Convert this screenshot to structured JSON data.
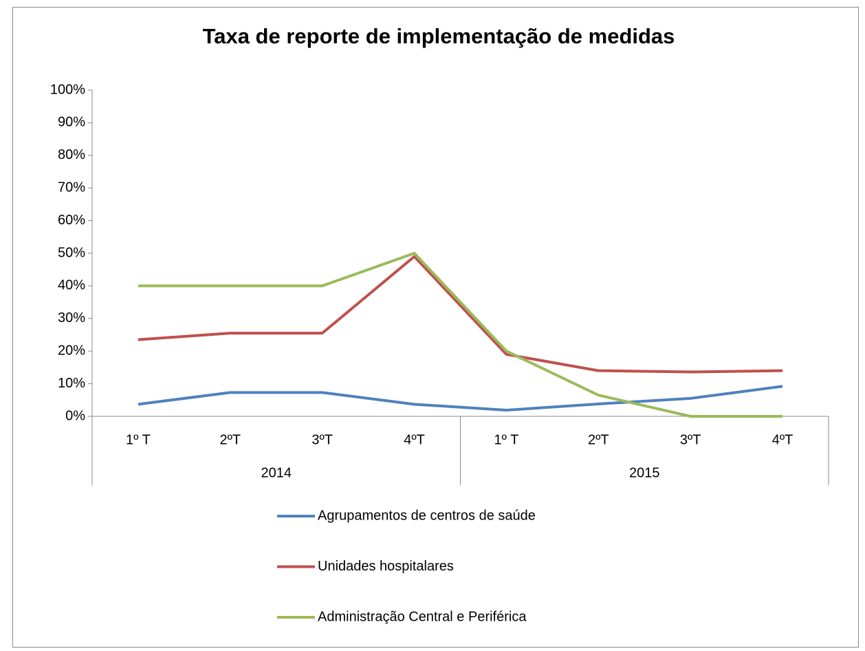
{
  "chart_data": {
    "type": "line",
    "title": "Taxa de reporte de implementação de medidas",
    "groups": [
      {
        "label": "2014",
        "categories": [
          "1º T",
          "2ºT",
          "3ºT",
          "4ºT"
        ]
      },
      {
        "label": "2015",
        "categories": [
          "1º T",
          "2ºT",
          "3ºT",
          "4ºT"
        ]
      }
    ],
    "series": [
      {
        "name": "Agrupamentos de centros de saúde",
        "color": "#4f81bd",
        "values": [
          3.7,
          7.3,
          7.3,
          3.7,
          1.9,
          3.8,
          5.5,
          9.2
        ]
      },
      {
        "name": "Unidades hospitalares",
        "color": "#c0504d",
        "values": [
          23.5,
          25.5,
          25.5,
          49,
          19,
          14,
          13.6,
          14
        ]
      },
      {
        "name": "Administração Central e Periférica",
        "color": "#9bbb59",
        "values": [
          40,
          40,
          40,
          50,
          20,
          6.5,
          0,
          0
        ]
      }
    ],
    "ylim": [
      0,
      100
    ],
    "yticks": [
      {
        "value": 0,
        "label": "0%"
      },
      {
        "value": 10,
        "label": "10%"
      },
      {
        "value": 20,
        "label": "20%"
      },
      {
        "value": 30,
        "label": "30%"
      },
      {
        "value": 40,
        "label": "40%"
      },
      {
        "value": 50,
        "label": "50%"
      },
      {
        "value": 60,
        "label": "60%"
      },
      {
        "value": 70,
        "label": "70%"
      },
      {
        "value": 80,
        "label": "80%"
      },
      {
        "value": 90,
        "label": "90%"
      },
      {
        "value": 100,
        "label": "100%"
      }
    ],
    "legend": "bottom"
  }
}
